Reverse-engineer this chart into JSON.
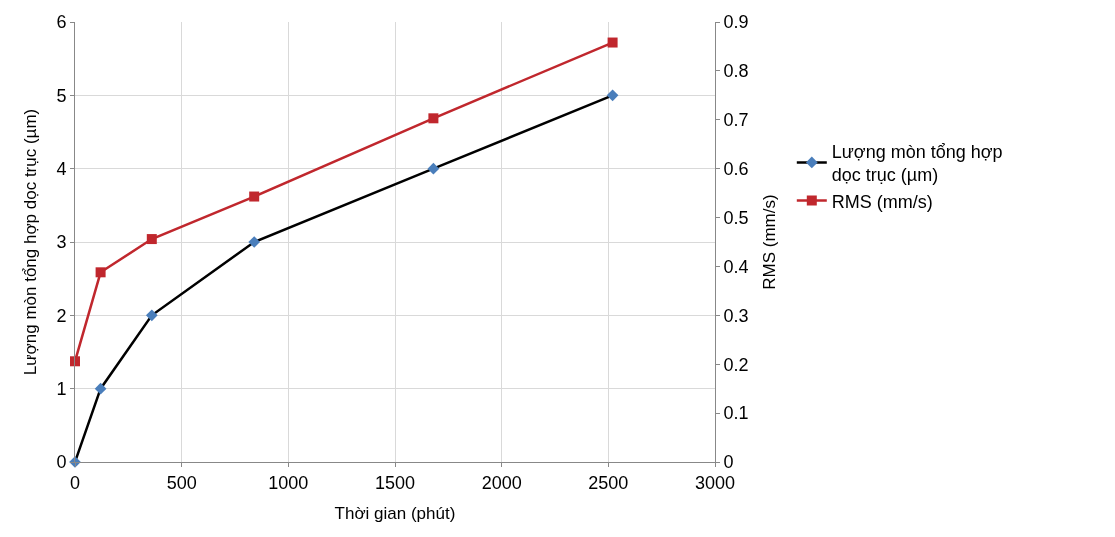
{
  "chart_data": {
    "type": "line",
    "xlabel": "Thời gian (phút)",
    "ylabel": "Lượng mòn tổng hợp dọc trục (µm)",
    "y2label": "RMS (mm/s)",
    "x": [
      0,
      120,
      360,
      840,
      1680,
      2520
    ],
    "series": [
      {
        "name": "Lượng mòn tổng hợp dọc trục (µm)",
        "color": "#000000",
        "colors": [
          "#4a7ebb",
          "#4a7ebb",
          "#4a7ebb",
          "#4a7ebb",
          "#4a7ebb",
          "#4a7ebb"
        ],
        "marker": "diamond",
        "values": [
          0,
          1,
          2,
          3,
          4,
          5
        ]
      },
      {
        "name": "RMS (mm/s)",
        "color": "#c0272d",
        "marker": "square",
        "axis": "y2",
        "values": [
          0.206,
          0.388,
          0.456,
          0.543,
          0.703,
          0.858
        ]
      }
    ],
    "xlim": [
      0,
      3000
    ],
    "xticks": [
      0,
      500,
      1000,
      1500,
      2000,
      2500,
      3000
    ],
    "ylim": [
      0,
      6
    ],
    "yticks": [
      0,
      1,
      2,
      3,
      4,
      5,
      6
    ],
    "y2lim": [
      0,
      0.9
    ],
    "y2ticks": [
      0,
      0.1,
      0.2,
      0.3,
      0.4,
      0.5,
      0.6,
      0.7,
      0.8,
      0.9
    ],
    "grid": true,
    "legend": "right",
    "line_style": "solid"
  }
}
